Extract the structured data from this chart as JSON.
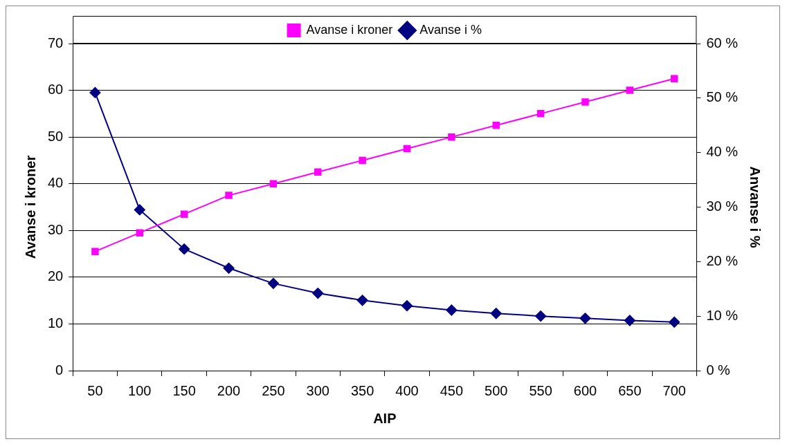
{
  "chart_data": {
    "type": "line",
    "xlabel": "AIP",
    "ylabel": "Avanse i kroner",
    "y2label": "Anvanse i %",
    "categories": [
      "50",
      "100",
      "150",
      "200",
      "250",
      "300",
      "350",
      "400",
      "450",
      "500",
      "550",
      "600",
      "650",
      "700"
    ],
    "series": [
      {
        "name": "Avanse i kroner",
        "color": "#ff00ff",
        "marker": "square",
        "values": [
          25.5,
          29.5,
          33.5,
          37.5,
          40,
          42.5,
          45,
          47.5,
          50,
          52.5,
          55,
          57.5,
          60,
          62.5
        ]
      },
      {
        "name": "Avanse i %",
        "color": "#000080",
        "marker": "diamond",
        "axis": "y2",
        "values": [
          51,
          29.5,
          22.3,
          18.8,
          16,
          14.2,
          12.9,
          11.9,
          11.1,
          10.5,
          10,
          9.6,
          9.2,
          8.9
        ]
      }
    ],
    "ylim": [
      0,
      70
    ],
    "yticks": [
      0,
      10,
      20,
      30,
      40,
      50,
      60,
      70
    ],
    "y2lim": [
      0,
      60
    ],
    "y2ticks": [
      {
        "value": 0,
        "label": "0 %"
      },
      {
        "value": 10,
        "label": "10 %"
      },
      {
        "value": 20,
        "label": "20 %"
      },
      {
        "value": 30,
        "label": "30 %"
      },
      {
        "value": 40,
        "label": "40 %"
      },
      {
        "value": 50,
        "label": "50 %"
      },
      {
        "value": 60,
        "label": "60 %"
      }
    ],
    "grid": "y",
    "legend": "top",
    "line_style": "solid"
  }
}
